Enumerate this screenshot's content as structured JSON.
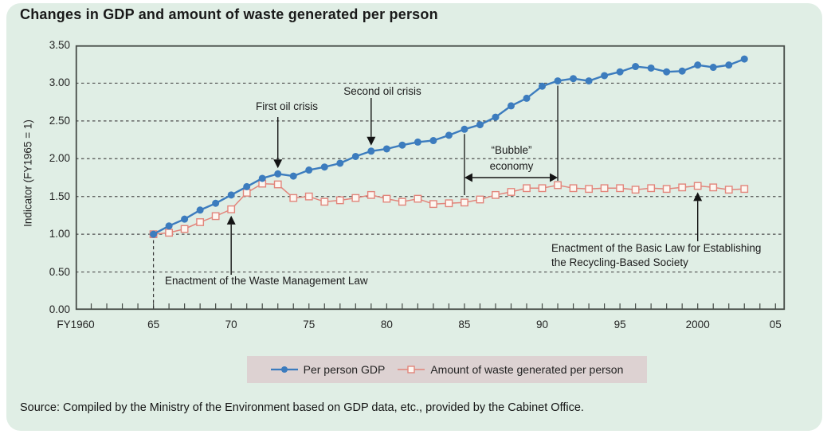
{
  "title": "Changes in GDP and amount of waste generated per person",
  "source": "Source: Compiled by the Ministry of the Environment based on GDP data, etc., provided by the Cabinet Office.",
  "colors": {
    "card_background": "#e0eee5",
    "legend_background": "#ddd2d2",
    "gdp_line": "#3c7cbe",
    "waste_line": "#e2857b",
    "waste_marker_fill": "#fdf7f1",
    "axis_border": "#454b46",
    "gridline": "#4e4e4e"
  },
  "chart_data": {
    "type": "line",
    "title": "Changes in GDP and amount of waste generated per person",
    "xlabel": "",
    "ylabel": "Indicator (FY1965 = 1)",
    "ylim": [
      0,
      3.5
    ],
    "xlim": [
      1960,
      2005.6
    ],
    "grid": "horizontal dashed lines every 0.5",
    "legend_position": "bottom",
    "y_tick_labels": [
      "0.00",
      "0.50",
      "1.00",
      "1.50",
      "2.00",
      "2.50",
      "3.00",
      "3.50"
    ],
    "x_ticks": [
      {
        "label": "FY1960",
        "year": 1960
      },
      {
        "label": "65",
        "year": 1965
      },
      {
        "label": "70",
        "year": 1970
      },
      {
        "label": "75",
        "year": 1975
      },
      {
        "label": "80",
        "year": 1980
      },
      {
        "label": "85",
        "year": 1985
      },
      {
        "label": "90",
        "year": 1990
      },
      {
        "label": "95",
        "year": 1995
      },
      {
        "label": "2000",
        "year": 2000
      },
      {
        "label": "05",
        "year": 2005
      }
    ],
    "x": [
      1965,
      1966,
      1967,
      1968,
      1969,
      1970,
      1971,
      1972,
      1973,
      1974,
      1975,
      1976,
      1977,
      1978,
      1979,
      1980,
      1981,
      1982,
      1983,
      1984,
      1985,
      1986,
      1987,
      1988,
      1989,
      1990,
      1991,
      1992,
      1993,
      1994,
      1995,
      1996,
      1997,
      1998,
      1999,
      2000,
      2001,
      2002,
      2003
    ],
    "series": [
      {
        "name": "Per person GDP",
        "color": "#3c7cbe",
        "marker": "circle",
        "values": [
          1.0,
          1.11,
          1.2,
          1.32,
          1.41,
          1.52,
          1.63,
          1.74,
          1.8,
          1.77,
          1.85,
          1.89,
          1.94,
          2.03,
          2.1,
          2.13,
          2.18,
          2.22,
          2.24,
          2.31,
          2.39,
          2.45,
          2.55,
          2.7,
          2.8,
          2.96,
          3.03,
          3.06,
          3.03,
          3.1,
          3.15,
          3.22,
          3.2,
          3.15,
          3.16,
          3.24,
          3.21,
          3.24,
          3.32
        ]
      },
      {
        "name": "Amount of waste generated per person",
        "color": "#e2857b",
        "marker": "open-square",
        "values": [
          1.0,
          1.02,
          1.07,
          1.16,
          1.24,
          1.33,
          1.55,
          1.67,
          1.66,
          1.48,
          1.5,
          1.43,
          1.45,
          1.48,
          1.52,
          1.47,
          1.43,
          1.47,
          1.4,
          1.41,
          1.42,
          1.46,
          1.52,
          1.56,
          1.61,
          1.61,
          1.65,
          1.61,
          1.6,
          1.61,
          1.61,
          1.59,
          1.61,
          1.6,
          1.62,
          1.64,
          1.62,
          1.59,
          1.6
        ]
      }
    ],
    "annotations": [
      {
        "id": "first-oil-crisis",
        "lines": [
          "First oil crisis"
        ],
        "arrow": "down",
        "target_series": "Per person GDP",
        "target_year": 1973
      },
      {
        "id": "second-oil-crisis",
        "lines": [
          "Second oil crisis"
        ],
        "arrow": "down",
        "target_series": "Per person GDP",
        "target_year": 1979
      },
      {
        "id": "bubble-economy",
        "lines": [
          "“Bubble”",
          "economy"
        ],
        "arrow": "horizontal-span",
        "span_years": [
          1985,
          1991
        ]
      },
      {
        "id": "waste-management-law",
        "lines": [
          "Enactment of the Waste Management Law"
        ],
        "arrow": "up",
        "target_series": "Amount of waste generated per person",
        "target_year": 1970
      },
      {
        "id": "recycling-law",
        "lines": [
          "Enactment of the Basic Law for Establishing",
          "the Recycling-Based Society"
        ],
        "arrow": "up",
        "target_series": "Amount of waste generated per person",
        "target_year": 2000
      },
      {
        "id": "baseline-1965",
        "lines": [],
        "arrow": "dashed-vertical-reference",
        "target_year": 1965
      }
    ]
  }
}
